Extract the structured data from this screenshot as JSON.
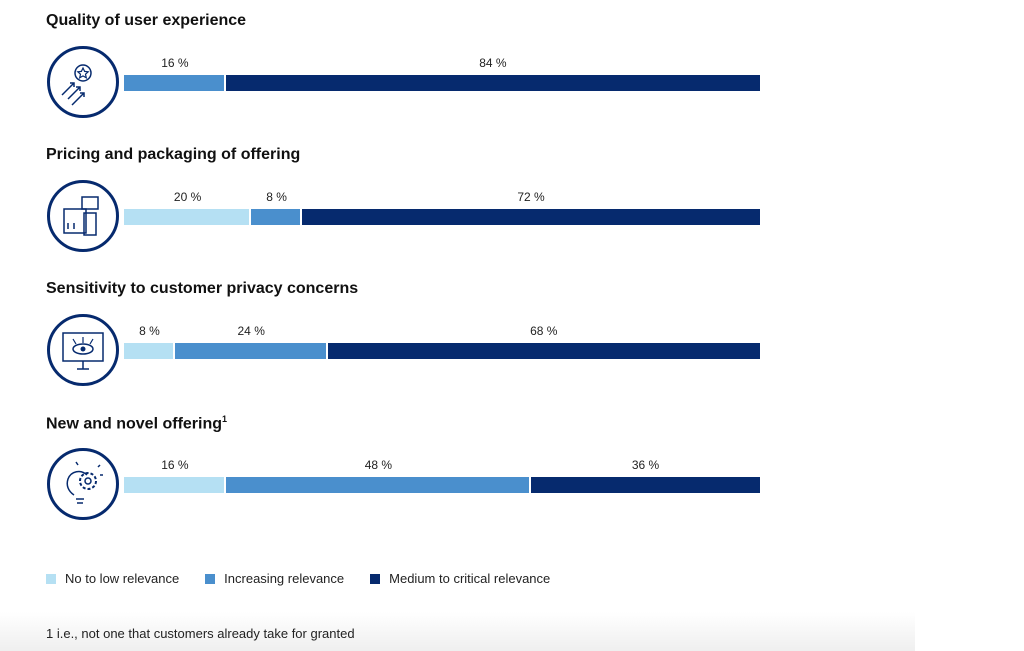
{
  "chart_data": {
    "type": "bar",
    "orientation": "horizontal-stacked",
    "xlim": [
      0,
      100
    ],
    "categories": [
      "Quality of user experience",
      "Pricing and packaging of offering",
      "Sensitivity to customer privacy concerns",
      "New and novel offering"
    ],
    "footnote_marks": [
      "",
      "",
      "",
      "1"
    ],
    "icons": [
      "star-arrows-icon",
      "price-tag-box-icon",
      "monitor-eye-icon",
      "lightbulb-gear-icon"
    ],
    "series": [
      {
        "name": "No to low relevance",
        "color": "#b5e0f3",
        "values": [
          0,
          20,
          8,
          16
        ]
      },
      {
        "name": "Increasing relevance",
        "color": "#4a8fcd",
        "values": [
          16,
          8,
          24,
          48
        ]
      },
      {
        "name": "Medium to critical relevance",
        "color": "#062a6e",
        "values": [
          84,
          72,
          68,
          36
        ]
      }
    ],
    "unit": "%",
    "legend_position": "bottom-left",
    "footnote": "1 i.e., not one that customers already take for granted"
  }
}
